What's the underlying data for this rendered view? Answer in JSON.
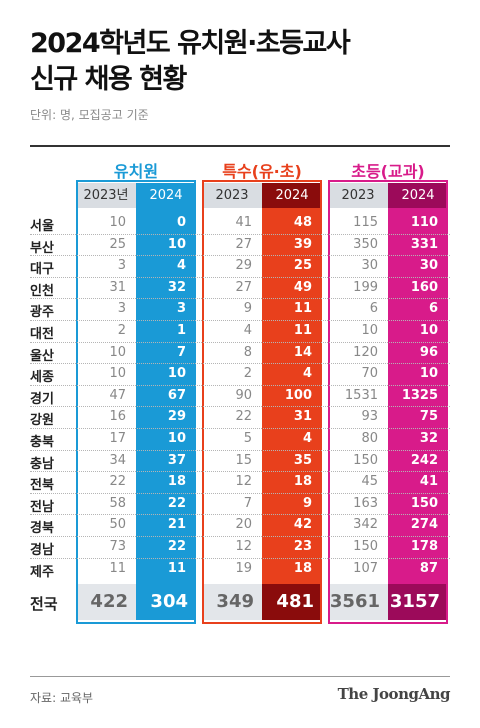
{
  "title_line1": "2024학년도 유치원·초등교사",
  "title_line2": "신규 채용 현황",
  "unit": "단위: 명, 모집공고 기준",
  "source": "자료: 교육부",
  "logo": "The JoongAng",
  "chart_data": {
    "type": "table",
    "groups": [
      {
        "name": "유치원",
        "color": "#1a9ad6",
        "dark": "#1a9ad6",
        "headers": [
          "2023년",
          "2024"
        ]
      },
      {
        "name": "특수(유·초)",
        "color": "#e8401c",
        "dark": "#8a0c0c",
        "headers": [
          "2023",
          "2024"
        ]
      },
      {
        "name": "초등(교과)",
        "color": "#d81b8a",
        "dark": "#9c0a5a",
        "headers": [
          "2023",
          "2024"
        ]
      }
    ],
    "rows": [
      {
        "region": "서울",
        "values": [
          10,
          0,
          41,
          48,
          115,
          110
        ]
      },
      {
        "region": "부산",
        "values": [
          25,
          10,
          27,
          39,
          350,
          331
        ]
      },
      {
        "region": "대구",
        "values": [
          3,
          4,
          29,
          25,
          30,
          30
        ]
      },
      {
        "region": "인천",
        "values": [
          31,
          32,
          27,
          49,
          199,
          160
        ]
      },
      {
        "region": "광주",
        "values": [
          3,
          3,
          9,
          11,
          6,
          6
        ]
      },
      {
        "region": "대전",
        "values": [
          2,
          1,
          4,
          11,
          10,
          10
        ]
      },
      {
        "region": "울산",
        "values": [
          10,
          7,
          8,
          14,
          120,
          96
        ]
      },
      {
        "region": "세종",
        "values": [
          10,
          10,
          2,
          4,
          70,
          10
        ]
      },
      {
        "region": "경기",
        "values": [
          47,
          67,
          90,
          100,
          1531,
          1325
        ]
      },
      {
        "region": "강원",
        "values": [
          16,
          29,
          22,
          31,
          93,
          75
        ]
      },
      {
        "region": "충북",
        "values": [
          17,
          10,
          5,
          4,
          80,
          32
        ]
      },
      {
        "region": "충남",
        "values": [
          34,
          37,
          15,
          35,
          150,
          242
        ]
      },
      {
        "region": "전북",
        "values": [
          22,
          18,
          12,
          18,
          45,
          41
        ]
      },
      {
        "region": "전남",
        "values": [
          58,
          22,
          7,
          9,
          163,
          150
        ]
      },
      {
        "region": "경북",
        "values": [
          50,
          21,
          20,
          42,
          342,
          274
        ]
      },
      {
        "region": "경남",
        "values": [
          73,
          22,
          12,
          23,
          150,
          178
        ]
      },
      {
        "region": "제주",
        "values": [
          11,
          11,
          19,
          18,
          107,
          87
        ]
      }
    ],
    "total": {
      "region": "전국",
      "values": [
        422,
        304,
        349,
        481,
        3561,
        3157
      ]
    }
  }
}
